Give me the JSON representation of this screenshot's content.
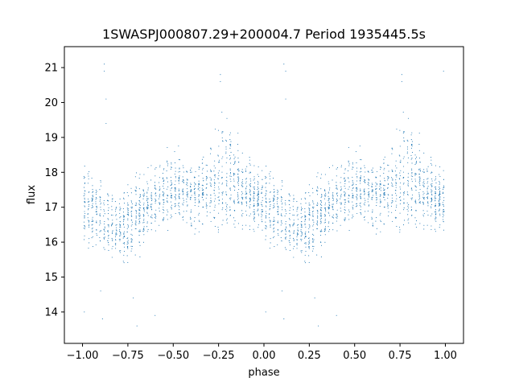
{
  "chart_data": {
    "type": "scatter",
    "title": "1SWASPJ000807.29+200004.7 Period 1935445.5s",
    "xlabel": "phase",
    "ylabel": "flux",
    "xlim": [
      -1.1,
      1.1
    ],
    "ylim": [
      13.1,
      21.6
    ],
    "xticks": [
      -1.0,
      -0.75,
      -0.5,
      -0.25,
      0.0,
      0.25,
      0.5,
      0.75,
      1.0
    ],
    "xtick_labels": [
      "−1.00",
      "−0.75",
      "−0.50",
      "−0.25",
      "0.00",
      "0.25",
      "0.50",
      "0.75",
      "1.00"
    ],
    "yticks": [
      14,
      15,
      16,
      17,
      18,
      19,
      20,
      21
    ],
    "ytick_labels": [
      "14",
      "15",
      "16",
      "17",
      "18",
      "19",
      "20",
      "21"
    ],
    "grid": false,
    "legend": "none",
    "point_color": "#1f77b4",
    "profile": {
      "phase": [
        0.0,
        0.05,
        0.1,
        0.15,
        0.2,
        0.25,
        0.3,
        0.35,
        0.4,
        0.45,
        0.5,
        0.55,
        0.6,
        0.65,
        0.7,
        0.75,
        0.8,
        0.85,
        0.9,
        0.95,
        1.0
      ],
      "flux": [
        17.1,
        17.0,
        16.8,
        16.4,
        16.3,
        16.5,
        16.8,
        17.0,
        17.2,
        17.4,
        17.6,
        17.5,
        17.3,
        17.4,
        17.6,
        17.9,
        18.0,
        17.8,
        17.5,
        17.3,
        17.1
      ],
      "spread": [
        1.0,
        1.1,
        1.2,
        1.0,
        0.9,
        1.0,
        1.1,
        1.0,
        1.0,
        1.0,
        1.0,
        1.0,
        1.0,
        1.1,
        1.2,
        1.5,
        1.7,
        1.4,
        1.1,
        1.0,
        1.0
      ]
    },
    "outliers": [
      {
        "x": -0.88,
        "y": 21.1
      },
      {
        "x": -0.88,
        "y": 20.9
      },
      {
        "x": -0.87,
        "y": 20.1
      },
      {
        "x": -0.87,
        "y": 19.4
      },
      {
        "x": -0.9,
        "y": 14.6
      },
      {
        "x": -0.89,
        "y": 13.8
      },
      {
        "x": -0.7,
        "y": 13.6
      },
      {
        "x": -0.72,
        "y": 14.4
      },
      {
        "x": -0.24,
        "y": 20.8
      },
      {
        "x": -0.24,
        "y": 20.6
      },
      {
        "x": 0.11,
        "y": 21.1
      },
      {
        "x": 0.12,
        "y": 20.9
      },
      {
        "x": 0.12,
        "y": 20.1
      },
      {
        "x": 0.1,
        "y": 14.6
      },
      {
        "x": 0.11,
        "y": 13.8
      },
      {
        "x": 0.3,
        "y": 13.6
      },
      {
        "x": 0.28,
        "y": 14.4
      },
      {
        "x": 0.76,
        "y": 20.8
      },
      {
        "x": 0.76,
        "y": 20.6
      },
      {
        "x": 0.99,
        "y": 20.9
      },
      {
        "x": -0.99,
        "y": 14.0
      },
      {
        "x": 0.01,
        "y": 14.0
      },
      {
        "x": -0.6,
        "y": 13.9
      },
      {
        "x": 0.4,
        "y": 13.9
      }
    ]
  }
}
